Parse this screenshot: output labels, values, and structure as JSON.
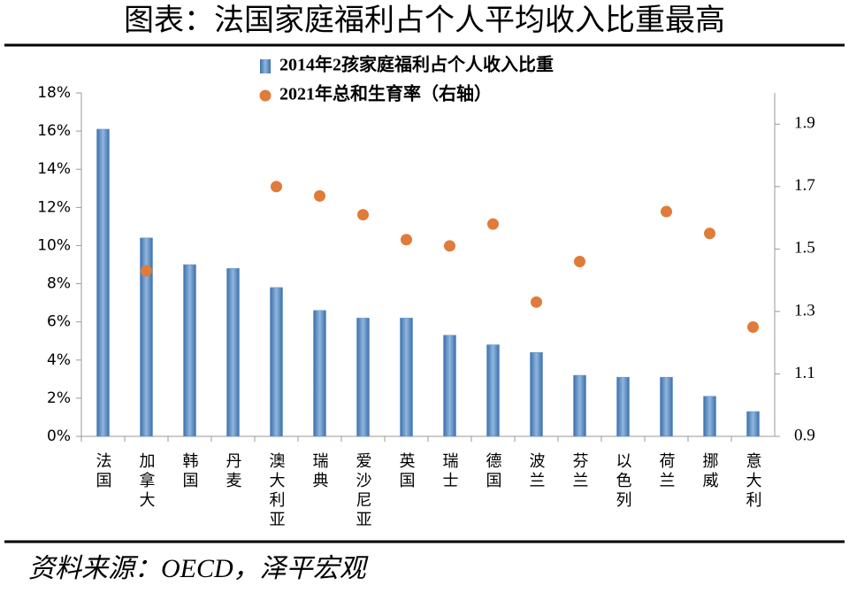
{
  "chart_data": {
    "type": "bar",
    "title": "图表：法国家庭福利占个人平均收入比重最高",
    "source": "资料来源：OECD，泽平宏观",
    "categories": [
      "法国",
      "加拿大",
      "韩国",
      "丹麦",
      "澳大利亚",
      "瑞典",
      "爱沙尼亚",
      "英国",
      "瑞士",
      "德国",
      "波兰",
      "芬兰",
      "以色列",
      "荷兰",
      "挪威",
      "意大利"
    ],
    "series": [
      {
        "name": "2014年2孩家庭福利占个人收入比重",
        "type": "bar",
        "color": "#5b8fc7",
        "values": [
          16.1,
          10.4,
          9.0,
          8.8,
          7.8,
          6.6,
          6.2,
          6.2,
          5.3,
          4.8,
          4.4,
          3.2,
          3.1,
          3.1,
          2.1,
          1.3
        ]
      },
      {
        "name": "2021年总和生育率（右轴）",
        "type": "scatter",
        "color": "#e07b39",
        "axis": "y2",
        "values": [
          null,
          1.43,
          null,
          null,
          1.7,
          1.67,
          1.61,
          1.53,
          1.51,
          1.58,
          1.33,
          1.46,
          null,
          1.62,
          1.55,
          1.25
        ]
      }
    ],
    "ylim": [
      0,
      18
    ],
    "yticks": [
      {
        "value": 0,
        "label": "0%"
      },
      {
        "value": 2,
        "label": "2%"
      },
      {
        "value": 4,
        "label": "4%"
      },
      {
        "value": 6,
        "label": "6%"
      },
      {
        "value": 8,
        "label": "8%"
      },
      {
        "value": 10,
        "label": "10%"
      },
      {
        "value": 12,
        "label": "12%"
      },
      {
        "value": 14,
        "label": "14%"
      },
      {
        "value": 16,
        "label": "16%"
      },
      {
        "value": 18,
        "label": "18%"
      }
    ],
    "y2lim": [
      0.9,
      2.0
    ],
    "y2ticks": [
      0.9,
      1.1,
      1.3,
      1.5,
      1.7,
      1.9
    ],
    "grid": false
  }
}
